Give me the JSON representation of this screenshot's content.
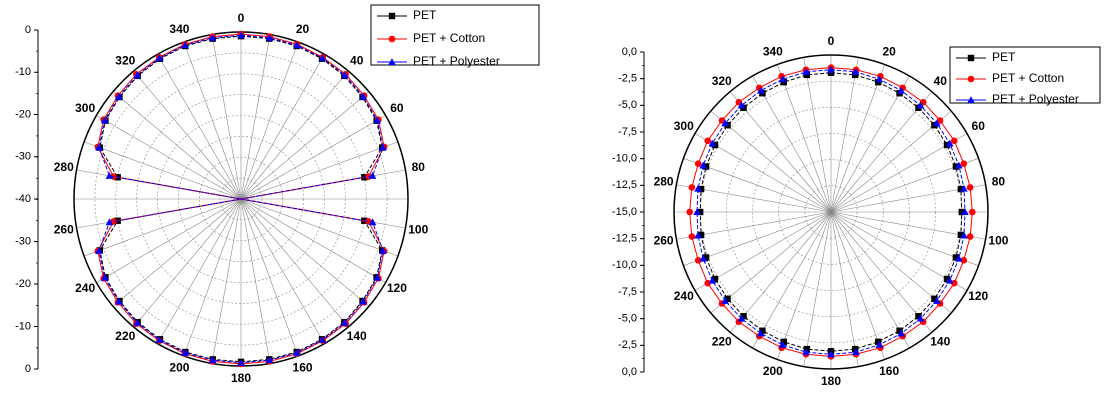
{
  "chart_data": [
    {
      "type": "polar",
      "angle_unit": "degrees",
      "angle_ticks": [
        "0",
        "20",
        "40",
        "60",
        "80",
        "100",
        "120",
        "140",
        "160",
        "180",
        "200",
        "220",
        "240",
        "260",
        "280",
        "300",
        "320",
        "340"
      ],
      "radial_ticks_upper": [
        "0",
        "-10",
        "-20",
        "-30",
        "-40"
      ],
      "radial_ticks_lower": [
        "-30",
        "-20",
        "-10",
        "0"
      ],
      "rlim": [
        -40,
        0
      ],
      "grid": true,
      "legend_position": "top-right",
      "series": [
        {
          "name": "PET",
          "color": "#000000",
          "marker": "square"
        },
        {
          "name": "PET + Cotton",
          "color": "#ff0000",
          "marker": "circle"
        },
        {
          "name": "PET + Polyester",
          "color": "#0000ff",
          "marker": "triangle"
        }
      ],
      "angles": [
        0,
        10,
        20,
        30,
        40,
        50,
        60,
        70,
        80,
        90,
        100,
        110,
        120,
        130,
        140,
        150,
        160,
        170,
        180,
        190,
        200,
        210,
        220,
        230,
        240,
        250,
        260,
        270,
        280,
        290,
        300,
        310,
        320,
        330,
        340,
        350
      ],
      "values": {
        "PET": [
          -1,
          -1,
          -1,
          -1.2,
          -1.5,
          -2,
          -2.5,
          -4,
          -10,
          -40,
          -10,
          -4,
          -2.5,
          -2,
          -1.5,
          -1.2,
          -1,
          -1,
          -1,
          -1,
          -1,
          -1.2,
          -1.5,
          -2,
          -2.5,
          -4,
          -10,
          -40,
          -10,
          -4,
          -2.5,
          -2,
          -1.5,
          -1.2,
          -1,
          -1
        ],
        "PET + Cotton": [
          -0.5,
          -0.5,
          -0.6,
          -0.8,
          -1,
          -1.5,
          -2,
          -3.5,
          -9,
          -40,
          -9,
          -3.5,
          -2,
          -1.5,
          -1,
          -0.8,
          -0.6,
          -0.5,
          -0.5,
          -0.5,
          -0.6,
          -0.8,
          -1,
          -1.5,
          -2,
          -3.5,
          -9,
          -40,
          -9,
          -3.5,
          -2,
          -1.5,
          -1,
          -0.8,
          -0.6,
          -0.5
        ],
        "PET + Polyester": [
          -0.8,
          -0.8,
          -0.8,
          -1,
          -1.3,
          -1.8,
          -2.3,
          -3.8,
          -8,
          -40,
          -8,
          -3.8,
          -2.3,
          -1.8,
          -1.3,
          -1,
          -0.8,
          -0.8,
          -0.8,
          -0.8,
          -0.8,
          -1,
          -1.3,
          -1.8,
          -2.3,
          -3.8,
          -8,
          -40,
          -8,
          -3.8,
          -2.3,
          -1.8,
          -1.3,
          -1,
          -0.8,
          -0.8
        ]
      }
    },
    {
      "type": "polar",
      "angle_unit": "degrees",
      "angle_ticks": [
        "0",
        "20",
        "40",
        "60",
        "80",
        "100",
        "120",
        "140",
        "160",
        "180",
        "200",
        "220",
        "240",
        "260",
        "280",
        "300",
        "320",
        "340"
      ],
      "radial_ticks_upper": [
        "0,0",
        "-2,5",
        "-5,0",
        "-7,5",
        "-10,0",
        "-12,5",
        "-15,0"
      ],
      "radial_ticks_lower": [
        "-12,5",
        "-10,0",
        "-7,5",
        "-5,0",
        "-2,5",
        "0,0"
      ],
      "rlim": [
        -15,
        0
      ],
      "grid": true,
      "legend_position": "top-right",
      "series": [
        {
          "name": "PET",
          "color": "#000000",
          "marker": "square"
        },
        {
          "name": "PET + Cotton",
          "color": "#ff0000",
          "marker": "circle"
        },
        {
          "name": "PET + Polyester",
          "color": "#0000ff",
          "marker": "triangle"
        }
      ],
      "angles": [
        0,
        10,
        20,
        30,
        40,
        50,
        60,
        70,
        80,
        90,
        100,
        110,
        120,
        130,
        140,
        150,
        160,
        170,
        180,
        190,
        200,
        210,
        220,
        230,
        240,
        250,
        260,
        270,
        280,
        290,
        300,
        310,
        320,
        330,
        340,
        350
      ],
      "values": {
        "PET": [
          -1.7,
          -1.7,
          -1.8,
          -1.9,
          -2,
          -2.1,
          -2.2,
          -2.3,
          -2.4,
          -2.5,
          -2.4,
          -2.3,
          -2.2,
          -2.1,
          -2,
          -1.9,
          -1.8,
          -1.7,
          -1.7,
          -1.7,
          -1.8,
          -1.9,
          -2,
          -2.1,
          -2.2,
          -2.3,
          -2.4,
          -2.5,
          -2.4,
          -2.3,
          -2.2,
          -2.1,
          -2,
          -1.9,
          -1.8,
          -1.7
        ],
        "PET + Cotton": [
          -1.2,
          -1.2,
          -1.2,
          -1.3,
          -1.3,
          -1.4,
          -1.4,
          -1.5,
          -1.5,
          -1.5,
          -1.5,
          -1.5,
          -1.4,
          -1.4,
          -1.3,
          -1.3,
          -1.2,
          -1.2,
          -1.2,
          -1.2,
          -1.2,
          -1.3,
          -1.3,
          -1.4,
          -1.4,
          -1.5,
          -1.5,
          -1.5,
          -1.5,
          -1.5,
          -1.4,
          -1.4,
          -1.3,
          -1.3,
          -1.2,
          -1.2
        ],
        "PET + Polyester": [
          -1.4,
          -1.4,
          -1.5,
          -1.6,
          -1.7,
          -1.8,
          -1.9,
          -2,
          -2.1,
          -2.2,
          -2.1,
          -2,
          -1.9,
          -1.8,
          -1.7,
          -1.6,
          -1.5,
          -1.4,
          -1.4,
          -1.4,
          -1.5,
          -1.6,
          -1.7,
          -1.8,
          -1.9,
          -2,
          -2.1,
          -2.2,
          -2.1,
          -2,
          -1.9,
          -1.8,
          -1.7,
          -1.6,
          -1.5,
          -1.4
        ]
      }
    }
  ]
}
